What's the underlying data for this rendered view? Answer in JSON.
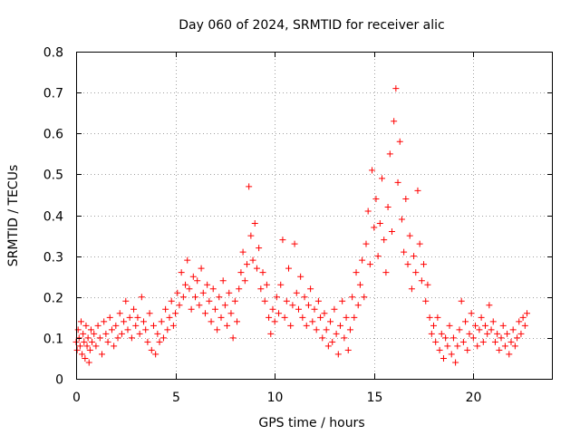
{
  "chart_data": {
    "type": "scatter",
    "title": "Day 060 of 2024, SRMTID for receiver alic",
    "xlabel": "GPS time / hours",
    "ylabel": "SRMTID / TECUs",
    "xlim": [
      0,
      24
    ],
    "ylim": [
      0,
      0.8
    ],
    "xticks": [
      "0",
      "5",
      "10",
      "15",
      "20"
    ],
    "yticks": [
      "0",
      "0.1",
      "0.2",
      "0.3",
      "0.4",
      "0.5",
      "0.6",
      "0.7",
      "0.8"
    ],
    "grid": true,
    "marker": "plus",
    "color": "#ff0000",
    "series": [
      {
        "name": "SRMTID",
        "points": [
          [
            0.0,
            0.09
          ],
          [
            0.05,
            0.07
          ],
          [
            0.1,
            0.12
          ],
          [
            0.15,
            0.1
          ],
          [
            0.2,
            0.08
          ],
          [
            0.25,
            0.14
          ],
          [
            0.3,
            0.06
          ],
          [
            0.35,
            0.11
          ],
          [
            0.4,
            0.09
          ],
          [
            0.45,
            0.05
          ],
          [
            0.5,
            0.13
          ],
          [
            0.55,
            0.08
          ],
          [
            0.6,
            0.1
          ],
          [
            0.65,
            0.04
          ],
          [
            0.7,
            0.07
          ],
          [
            0.75,
            0.12
          ],
          [
            0.8,
            0.09
          ],
          [
            0.9,
            0.11
          ],
          [
            1.0,
            0.08
          ],
          [
            1.1,
            0.13
          ],
          [
            1.2,
            0.1
          ],
          [
            1.3,
            0.06
          ],
          [
            1.4,
            0.14
          ],
          [
            1.5,
            0.11
          ],
          [
            1.6,
            0.09
          ],
          [
            1.7,
            0.15
          ],
          [
            1.8,
            0.12
          ],
          [
            1.9,
            0.08
          ],
          [
            2.0,
            0.13
          ],
          [
            2.1,
            0.1
          ],
          [
            2.2,
            0.16
          ],
          [
            2.3,
            0.11
          ],
          [
            2.4,
            0.14
          ],
          [
            2.5,
            0.19
          ],
          [
            2.6,
            0.12
          ],
          [
            2.7,
            0.15
          ],
          [
            2.8,
            0.1
          ],
          [
            2.9,
            0.17
          ],
          [
            3.0,
            0.13
          ],
          [
            3.1,
            0.15
          ],
          [
            3.2,
            0.11
          ],
          [
            3.3,
            0.2
          ],
          [
            3.4,
            0.14
          ],
          [
            3.5,
            0.12
          ],
          [
            3.6,
            0.09
          ],
          [
            3.7,
            0.16
          ],
          [
            3.8,
            0.07
          ],
          [
            3.9,
            0.13
          ],
          [
            4.0,
            0.06
          ],
          [
            4.1,
            0.11
          ],
          [
            4.2,
            0.09
          ],
          [
            4.3,
            0.14
          ],
          [
            4.4,
            0.1
          ],
          [
            4.5,
            0.17
          ],
          [
            4.6,
            0.12
          ],
          [
            4.7,
            0.15
          ],
          [
            4.8,
            0.19
          ],
          [
            4.9,
            0.13
          ],
          [
            5.0,
            0.16
          ],
          [
            5.1,
            0.21
          ],
          [
            5.2,
            0.18
          ],
          [
            5.3,
            0.26
          ],
          [
            5.4,
            0.2
          ],
          [
            5.5,
            0.23
          ],
          [
            5.6,
            0.29
          ],
          [
            5.7,
            0.22
          ],
          [
            5.8,
            0.17
          ],
          [
            5.9,
            0.25
          ],
          [
            6.0,
            0.2
          ],
          [
            6.1,
            0.24
          ],
          [
            6.2,
            0.18
          ],
          [
            6.3,
            0.27
          ],
          [
            6.4,
            0.21
          ],
          [
            6.5,
            0.16
          ],
          [
            6.6,
            0.23
          ],
          [
            6.7,
            0.19
          ],
          [
            6.8,
            0.14
          ],
          [
            6.9,
            0.22
          ],
          [
            7.0,
            0.17
          ],
          [
            7.1,
            0.12
          ],
          [
            7.2,
            0.2
          ],
          [
            7.3,
            0.15
          ],
          [
            7.4,
            0.24
          ],
          [
            7.5,
            0.18
          ],
          [
            7.6,
            0.13
          ],
          [
            7.7,
            0.21
          ],
          [
            7.8,
            0.16
          ],
          [
            7.9,
            0.1
          ],
          [
            8.0,
            0.19
          ],
          [
            8.1,
            0.14
          ],
          [
            8.2,
            0.22
          ],
          [
            8.3,
            0.26
          ],
          [
            8.4,
            0.31
          ],
          [
            8.5,
            0.24
          ],
          [
            8.6,
            0.28
          ],
          [
            8.7,
            0.47
          ],
          [
            8.8,
            0.35
          ],
          [
            8.9,
            0.29
          ],
          [
            9.0,
            0.38
          ],
          [
            9.1,
            0.27
          ],
          [
            9.2,
            0.32
          ],
          [
            9.3,
            0.22
          ],
          [
            9.4,
            0.26
          ],
          [
            9.5,
            0.19
          ],
          [
            9.6,
            0.23
          ],
          [
            9.7,
            0.15
          ],
          [
            9.8,
            0.11
          ],
          [
            9.9,
            0.17
          ],
          [
            10.0,
            0.14
          ],
          [
            10.1,
            0.2
          ],
          [
            10.2,
            0.16
          ],
          [
            10.3,
            0.23
          ],
          [
            10.4,
            0.34
          ],
          [
            10.5,
            0.15
          ],
          [
            10.6,
            0.19
          ],
          [
            10.7,
            0.27
          ],
          [
            10.8,
            0.13
          ],
          [
            10.9,
            0.18
          ],
          [
            11.0,
            0.33
          ],
          [
            11.1,
            0.21
          ],
          [
            11.2,
            0.17
          ],
          [
            11.3,
            0.25
          ],
          [
            11.4,
            0.15
          ],
          [
            11.5,
            0.2
          ],
          [
            11.6,
            0.13
          ],
          [
            11.7,
            0.18
          ],
          [
            11.8,
            0.22
          ],
          [
            11.9,
            0.14
          ],
          [
            12.0,
            0.17
          ],
          [
            12.1,
            0.12
          ],
          [
            12.2,
            0.19
          ],
          [
            12.3,
            0.15
          ],
          [
            12.4,
            0.1
          ],
          [
            12.5,
            0.16
          ],
          [
            12.6,
            0.12
          ],
          [
            12.7,
            0.08
          ],
          [
            12.8,
            0.14
          ],
          [
            12.9,
            0.09
          ],
          [
            13.0,
            0.17
          ],
          [
            13.1,
            0.11
          ],
          [
            13.2,
            0.06
          ],
          [
            13.3,
            0.13
          ],
          [
            13.4,
            0.19
          ],
          [
            13.5,
            0.1
          ],
          [
            13.6,
            0.15
          ],
          [
            13.7,
            0.07
          ],
          [
            13.8,
            0.12
          ],
          [
            13.9,
            0.2
          ],
          [
            14.0,
            0.15
          ],
          [
            14.1,
            0.26
          ],
          [
            14.2,
            0.18
          ],
          [
            14.3,
            0.23
          ],
          [
            14.4,
            0.29
          ],
          [
            14.5,
            0.2
          ],
          [
            14.6,
            0.33
          ],
          [
            14.7,
            0.41
          ],
          [
            14.8,
            0.28
          ],
          [
            14.9,
            0.51
          ],
          [
            15.0,
            0.37
          ],
          [
            15.1,
            0.44
          ],
          [
            15.2,
            0.3
          ],
          [
            15.3,
            0.38
          ],
          [
            15.4,
            0.49
          ],
          [
            15.5,
            0.34
          ],
          [
            15.6,
            0.26
          ],
          [
            15.7,
            0.42
          ],
          [
            15.8,
            0.55
          ],
          [
            15.9,
            0.36
          ],
          [
            16.0,
            0.63
          ],
          [
            16.1,
            0.71
          ],
          [
            16.2,
            0.48
          ],
          [
            16.3,
            0.58
          ],
          [
            16.4,
            0.39
          ],
          [
            16.5,
            0.31
          ],
          [
            16.6,
            0.44
          ],
          [
            16.7,
            0.28
          ],
          [
            16.8,
            0.35
          ],
          [
            16.9,
            0.22
          ],
          [
            17.0,
            0.3
          ],
          [
            17.1,
            0.26
          ],
          [
            17.2,
            0.46
          ],
          [
            17.3,
            0.33
          ],
          [
            17.4,
            0.24
          ],
          [
            17.5,
            0.28
          ],
          [
            17.6,
            0.19
          ],
          [
            17.7,
            0.23
          ],
          [
            17.8,
            0.15
          ],
          [
            17.9,
            0.11
          ],
          [
            18.0,
            0.13
          ],
          [
            18.1,
            0.09
          ],
          [
            18.2,
            0.15
          ],
          [
            18.3,
            0.07
          ],
          [
            18.4,
            0.11
          ],
          [
            18.5,
            0.05
          ],
          [
            18.6,
            0.1
          ],
          [
            18.7,
            0.08
          ],
          [
            18.8,
            0.13
          ],
          [
            18.9,
            0.06
          ],
          [
            19.0,
            0.1
          ],
          [
            19.1,
            0.04
          ],
          [
            19.2,
            0.08
          ],
          [
            19.3,
            0.12
          ],
          [
            19.4,
            0.19
          ],
          [
            19.5,
            0.09
          ],
          [
            19.6,
            0.14
          ],
          [
            19.7,
            0.07
          ],
          [
            19.8,
            0.11
          ],
          [
            19.9,
            0.16
          ],
          [
            20.0,
            0.1
          ],
          [
            20.1,
            0.13
          ],
          [
            20.2,
            0.08
          ],
          [
            20.3,
            0.12
          ],
          [
            20.4,
            0.15
          ],
          [
            20.5,
            0.09
          ],
          [
            20.6,
            0.13
          ],
          [
            20.7,
            0.11
          ],
          [
            20.8,
            0.18
          ],
          [
            20.9,
            0.12
          ],
          [
            21.0,
            0.14
          ],
          [
            21.1,
            0.09
          ],
          [
            21.2,
            0.11
          ],
          [
            21.3,
            0.07
          ],
          [
            21.4,
            0.1
          ],
          [
            21.5,
            0.13
          ],
          [
            21.6,
            0.08
          ],
          [
            21.7,
            0.11
          ],
          [
            21.8,
            0.06
          ],
          [
            21.9,
            0.09
          ],
          [
            22.0,
            0.12
          ],
          [
            22.1,
            0.08
          ],
          [
            22.2,
            0.1
          ],
          [
            22.3,
            0.14
          ],
          [
            22.4,
            0.11
          ],
          [
            22.5,
            0.15
          ],
          [
            22.6,
            0.13
          ],
          [
            22.7,
            0.16
          ]
        ]
      }
    ]
  }
}
